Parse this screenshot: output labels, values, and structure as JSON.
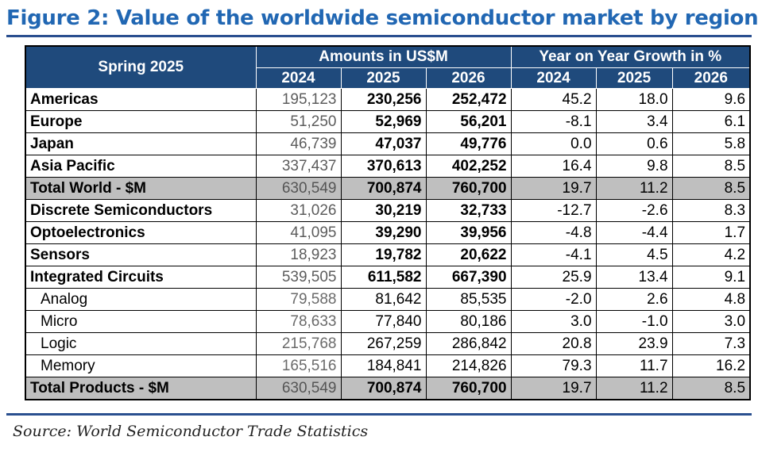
{
  "title": "Figure 2: Value of the worldwide semiconductor market by region",
  "source": "Source: World Semiconductor Trade Statistics",
  "colors": {
    "title": "#2167b3",
    "header_bg": "#1f4a7c",
    "total_row_bg": "#bfbfbf"
  },
  "chart_data": {
    "type": "table",
    "header": {
      "row_label": "Spring 2025",
      "group_amounts": "Amounts in US$M",
      "group_growth": "Year on Year Growth in %",
      "years": [
        "2024",
        "2025",
        "2026"
      ]
    },
    "rows": [
      {
        "label": "Americas",
        "amounts": [
          "195,123",
          "230,256",
          "252,472"
        ],
        "growth": [
          "45.2",
          "18.0",
          "9.6"
        ],
        "kind": "main"
      },
      {
        "label": "Europe",
        "amounts": [
          "51,250",
          "52,969",
          "56,201"
        ],
        "growth": [
          "-8.1",
          "3.4",
          "6.1"
        ],
        "kind": "main"
      },
      {
        "label": "Japan",
        "amounts": [
          "46,739",
          "47,037",
          "49,776"
        ],
        "growth": [
          "0.0",
          "0.6",
          "5.8"
        ],
        "kind": "main"
      },
      {
        "label": "Asia Pacific",
        "amounts": [
          "337,437",
          "370,613",
          "402,252"
        ],
        "growth": [
          "16.4",
          "9.8",
          "8.5"
        ],
        "kind": "main"
      },
      {
        "label": "Total World - $M",
        "amounts": [
          "630,549",
          "700,874",
          "760,700"
        ],
        "growth": [
          "19.7",
          "11.2",
          "8.5"
        ],
        "kind": "total"
      },
      {
        "label": "Discrete Semiconductors",
        "amounts": [
          "31,026",
          "30,219",
          "32,733"
        ],
        "growth": [
          "-12.7",
          "-2.6",
          "8.3"
        ],
        "kind": "main"
      },
      {
        "label": "Optoelectronics",
        "amounts": [
          "41,095",
          "39,290",
          "39,956"
        ],
        "growth": [
          "-4.8",
          "-4.4",
          "1.7"
        ],
        "kind": "main"
      },
      {
        "label": "Sensors",
        "amounts": [
          "18,923",
          "19,782",
          "20,622"
        ],
        "growth": [
          "-4.1",
          "4.5",
          "4.2"
        ],
        "kind": "main"
      },
      {
        "label": "Integrated Circuits",
        "amounts": [
          "539,505",
          "611,582",
          "667,390"
        ],
        "growth": [
          "25.9",
          "13.4",
          "9.1"
        ],
        "kind": "main"
      },
      {
        "label": "Analog",
        "amounts": [
          "79,588",
          "81,642",
          "85,535"
        ],
        "growth": [
          "-2.0",
          "2.6",
          "4.8"
        ],
        "kind": "sub"
      },
      {
        "label": "Micro",
        "amounts": [
          "78,633",
          "77,840",
          "80,186"
        ],
        "growth": [
          "3.0",
          "-1.0",
          "3.0"
        ],
        "kind": "sub"
      },
      {
        "label": "Logic",
        "amounts": [
          "215,768",
          "267,259",
          "286,842"
        ],
        "growth": [
          "20.8",
          "23.9",
          "7.3"
        ],
        "kind": "sub"
      },
      {
        "label": "Memory",
        "amounts": [
          "165,516",
          "184,841",
          "214,826"
        ],
        "growth": [
          "79.3",
          "11.7",
          "16.2"
        ],
        "kind": "sub"
      },
      {
        "label": "Total Products - $M",
        "amounts": [
          "630,549",
          "700,874",
          "760,700"
        ],
        "growth": [
          "19.7",
          "11.2",
          "8.5"
        ],
        "kind": "total"
      }
    ]
  }
}
